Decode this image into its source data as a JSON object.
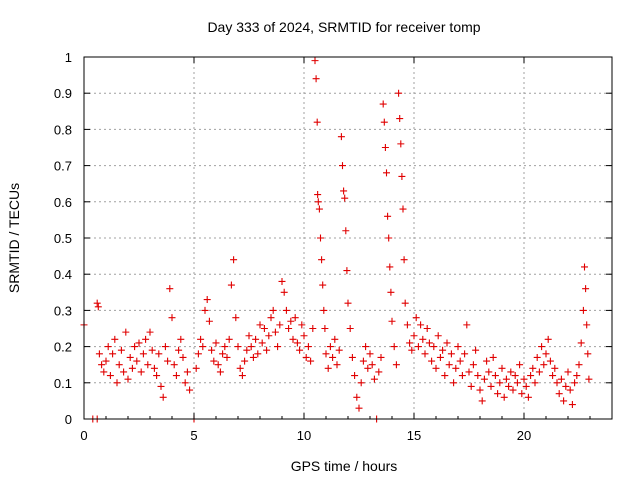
{
  "chart_data": {
    "type": "scatter",
    "title": "Day 333 of 2024, SRMTID for receiver tomp",
    "xlabel": "GPS time / hours",
    "ylabel": "SRMTID / TECUs",
    "xlim": [
      0,
      24
    ],
    "ylim": [
      0,
      1
    ],
    "xticks": [
      0,
      5,
      10,
      15,
      20
    ],
    "xtick_labels": [
      "0",
      "5",
      "10",
      "15",
      "20"
    ],
    "yticks": [
      0,
      0.1,
      0.2,
      0.3,
      0.4,
      0.5,
      0.6,
      0.7,
      0.8,
      0.9,
      1
    ],
    "ytick_labels": [
      "0",
      "0.1",
      "0.2",
      "0.3",
      "0.4",
      "0.5",
      "0.6",
      "0.7",
      "0.8",
      "0.9",
      "1"
    ],
    "grid": true,
    "marker": "plus",
    "color": "#e00000",
    "series": [
      {
        "name": "SRMTID",
        "points": [
          [
            0.0,
            0.26
          ],
          [
            0.4,
            0.0
          ],
          [
            0.6,
            0.0
          ],
          [
            0.6,
            0.32
          ],
          [
            0.65,
            0.31
          ],
          [
            0.7,
            0.18
          ],
          [
            0.8,
            0.15
          ],
          [
            0.9,
            0.13
          ],
          [
            1.0,
            0.16
          ],
          [
            1.1,
            0.2
          ],
          [
            1.2,
            0.12
          ],
          [
            1.3,
            0.18
          ],
          [
            1.4,
            0.22
          ],
          [
            1.5,
            0.1
          ],
          [
            1.6,
            0.15
          ],
          [
            1.7,
            0.19
          ],
          [
            1.8,
            0.13
          ],
          [
            1.9,
            0.24
          ],
          [
            2.0,
            0.11
          ],
          [
            2.1,
            0.17
          ],
          [
            2.2,
            0.14
          ],
          [
            2.3,
            0.2
          ],
          [
            2.4,
            0.16
          ],
          [
            2.5,
            0.21
          ],
          [
            2.6,
            0.13
          ],
          [
            2.7,
            0.18
          ],
          [
            2.8,
            0.22
          ],
          [
            2.9,
            0.15
          ],
          [
            3.0,
            0.24
          ],
          [
            3.1,
            0.19
          ],
          [
            3.2,
            0.14
          ],
          [
            3.3,
            0.12
          ],
          [
            3.4,
            0.18
          ],
          [
            3.5,
            0.09
          ],
          [
            3.6,
            0.06
          ],
          [
            3.7,
            0.2
          ],
          [
            3.8,
            0.16
          ],
          [
            3.9,
            0.36
          ],
          [
            4.0,
            0.28
          ],
          [
            4.1,
            0.15
          ],
          [
            4.2,
            0.12
          ],
          [
            4.3,
            0.19
          ],
          [
            4.4,
            0.22
          ],
          [
            4.5,
            0.17
          ],
          [
            4.6,
            0.1
          ],
          [
            4.7,
            0.13
          ],
          [
            4.8,
            0.08
          ],
          [
            5.0,
            0.0
          ],
          [
            5.1,
            0.14
          ],
          [
            5.2,
            0.18
          ],
          [
            5.3,
            0.22
          ],
          [
            5.4,
            0.2
          ],
          [
            5.5,
            0.3
          ],
          [
            5.6,
            0.33
          ],
          [
            5.7,
            0.27
          ],
          [
            5.8,
            0.19
          ],
          [
            5.9,
            0.16
          ],
          [
            6.0,
            0.21
          ],
          [
            6.1,
            0.15
          ],
          [
            6.2,
            0.13
          ],
          [
            6.3,
            0.18
          ],
          [
            6.4,
            0.2
          ],
          [
            6.5,
            0.17
          ],
          [
            6.6,
            0.22
          ],
          [
            6.7,
            0.37
          ],
          [
            6.8,
            0.44
          ],
          [
            6.9,
            0.28
          ],
          [
            7.0,
            0.2
          ],
          [
            7.1,
            0.14
          ],
          [
            7.2,
            0.12
          ],
          [
            7.3,
            0.16
          ],
          [
            7.4,
            0.19
          ],
          [
            7.5,
            0.23
          ],
          [
            7.6,
            0.2
          ],
          [
            7.7,
            0.17
          ],
          [
            7.8,
            0.22
          ],
          [
            7.9,
            0.18
          ],
          [
            8.0,
            0.26
          ],
          [
            8.1,
            0.21
          ],
          [
            8.2,
            0.25
          ],
          [
            8.3,
            0.19
          ],
          [
            8.4,
            0.23
          ],
          [
            8.5,
            0.28
          ],
          [
            8.6,
            0.3
          ],
          [
            8.7,
            0.24
          ],
          [
            8.8,
            0.2
          ],
          [
            8.9,
            0.26
          ],
          [
            9.0,
            0.38
          ],
          [
            9.1,
            0.35
          ],
          [
            9.2,
            0.3
          ],
          [
            9.3,
            0.25
          ],
          [
            9.4,
            0.27
          ],
          [
            9.5,
            0.22
          ],
          [
            9.6,
            0.28
          ],
          [
            9.7,
            0.21
          ],
          [
            9.8,
            0.19
          ],
          [
            9.9,
            0.26
          ],
          [
            10.0,
            0.23
          ],
          [
            10.1,
            0.17
          ],
          [
            10.2,
            0.2
          ],
          [
            10.3,
            0.16
          ],
          [
            10.4,
            0.25
          ],
          [
            10.5,
            0.99
          ],
          [
            10.55,
            0.94
          ],
          [
            10.6,
            0.82
          ],
          [
            10.62,
            0.62
          ],
          [
            10.65,
            0.6
          ],
          [
            10.7,
            0.58
          ],
          [
            10.75,
            0.5
          ],
          [
            10.8,
            0.44
          ],
          [
            10.85,
            0.37
          ],
          [
            10.9,
            0.3
          ],
          [
            10.95,
            0.25
          ],
          [
            11.0,
            0.18
          ],
          [
            11.1,
            0.14
          ],
          [
            11.2,
            0.2
          ],
          [
            11.3,
            0.17
          ],
          [
            11.4,
            0.22
          ],
          [
            11.5,
            0.15
          ],
          [
            11.6,
            0.19
          ],
          [
            11.7,
            0.78
          ],
          [
            11.75,
            0.7
          ],
          [
            11.8,
            0.63
          ],
          [
            11.85,
            0.61
          ],
          [
            11.9,
            0.52
          ],
          [
            11.95,
            0.41
          ],
          [
            12.0,
            0.32
          ],
          [
            12.1,
            0.25
          ],
          [
            12.2,
            0.17
          ],
          [
            12.3,
            0.12
          ],
          [
            12.4,
            0.06
          ],
          [
            12.5,
            0.03
          ],
          [
            12.6,
            0.1
          ],
          [
            12.7,
            0.16
          ],
          [
            12.8,
            0.2
          ],
          [
            12.9,
            0.14
          ],
          [
            13.0,
            0.18
          ],
          [
            13.1,
            0.15
          ],
          [
            13.2,
            0.11
          ],
          [
            13.3,
            0.0
          ],
          [
            13.4,
            0.13
          ],
          [
            13.5,
            0.17
          ],
          [
            13.6,
            0.87
          ],
          [
            13.65,
            0.82
          ],
          [
            13.7,
            0.75
          ],
          [
            13.75,
            0.68
          ],
          [
            13.8,
            0.56
          ],
          [
            13.85,
            0.5
          ],
          [
            13.9,
            0.42
          ],
          [
            13.95,
            0.35
          ],
          [
            14.0,
            0.27
          ],
          [
            14.1,
            0.2
          ],
          [
            14.2,
            0.15
          ],
          [
            14.3,
            0.9
          ],
          [
            14.35,
            0.83
          ],
          [
            14.4,
            0.76
          ],
          [
            14.45,
            0.67
          ],
          [
            14.5,
            0.58
          ],
          [
            14.55,
            0.44
          ],
          [
            14.6,
            0.32
          ],
          [
            14.7,
            0.26
          ],
          [
            14.8,
            0.21
          ],
          [
            14.9,
            0.19
          ],
          [
            15.0,
            0.23
          ],
          [
            15.1,
            0.28
          ],
          [
            15.2,
            0.2
          ],
          [
            15.3,
            0.26
          ],
          [
            15.4,
            0.22
          ],
          [
            15.5,
            0.18
          ],
          [
            15.6,
            0.25
          ],
          [
            15.7,
            0.21
          ],
          [
            15.8,
            0.16
          ],
          [
            15.9,
            0.2
          ],
          [
            16.0,
            0.14
          ],
          [
            16.1,
            0.23
          ],
          [
            16.2,
            0.17
          ],
          [
            16.3,
            0.19
          ],
          [
            16.4,
            0.12
          ],
          [
            16.5,
            0.21
          ],
          [
            16.6,
            0.15
          ],
          [
            16.7,
            0.18
          ],
          [
            16.8,
            0.1
          ],
          [
            16.9,
            0.14
          ],
          [
            17.0,
            0.2
          ],
          [
            17.1,
            0.16
          ],
          [
            17.2,
            0.12
          ],
          [
            17.3,
            0.18
          ],
          [
            17.4,
            0.26
          ],
          [
            17.5,
            0.13
          ],
          [
            17.6,
            0.09
          ],
          [
            17.7,
            0.15
          ],
          [
            17.8,
            0.19
          ],
          [
            17.9,
            0.12
          ],
          [
            18.0,
            0.08
          ],
          [
            18.1,
            0.05
          ],
          [
            18.2,
            0.11
          ],
          [
            18.3,
            0.16
          ],
          [
            18.4,
            0.13
          ],
          [
            18.5,
            0.09
          ],
          [
            18.6,
            0.17
          ],
          [
            18.7,
            0.12
          ],
          [
            18.8,
            0.07
          ],
          [
            18.9,
            0.1
          ],
          [
            19.0,
            0.14
          ],
          [
            19.1,
            0.06
          ],
          [
            19.2,
            0.11
          ],
          [
            19.3,
            0.09
          ],
          [
            19.4,
            0.13
          ],
          [
            19.5,
            0.08
          ],
          [
            19.6,
            0.12
          ],
          [
            19.7,
            0.1
          ],
          [
            19.8,
            0.15
          ],
          [
            19.9,
            0.07
          ],
          [
            20.0,
            0.11
          ],
          [
            20.1,
            0.09
          ],
          [
            20.2,
            0.06
          ],
          [
            20.3,
            0.12
          ],
          [
            20.4,
            0.14
          ],
          [
            20.5,
            0.1
          ],
          [
            20.6,
            0.17
          ],
          [
            20.7,
            0.13
          ],
          [
            20.8,
            0.2
          ],
          [
            20.9,
            0.15
          ],
          [
            21.0,
            0.18
          ],
          [
            21.1,
            0.22
          ],
          [
            21.2,
            0.16
          ],
          [
            21.3,
            0.12
          ],
          [
            21.4,
            0.14
          ],
          [
            21.5,
            0.1
          ],
          [
            21.6,
            0.07
          ],
          [
            21.7,
            0.11
          ],
          [
            21.8,
            0.05
          ],
          [
            21.9,
            0.09
          ],
          [
            22.0,
            0.13
          ],
          [
            22.1,
            0.08
          ],
          [
            22.2,
            0.04
          ],
          [
            22.3,
            0.1
          ],
          [
            22.4,
            0.12
          ],
          [
            22.5,
            0.15
          ],
          [
            22.6,
            0.21
          ],
          [
            22.7,
            0.3
          ],
          [
            22.75,
            0.42
          ],
          [
            22.8,
            0.36
          ],
          [
            22.85,
            0.26
          ],
          [
            22.9,
            0.18
          ],
          [
            22.95,
            0.11
          ]
        ]
      }
    ]
  }
}
